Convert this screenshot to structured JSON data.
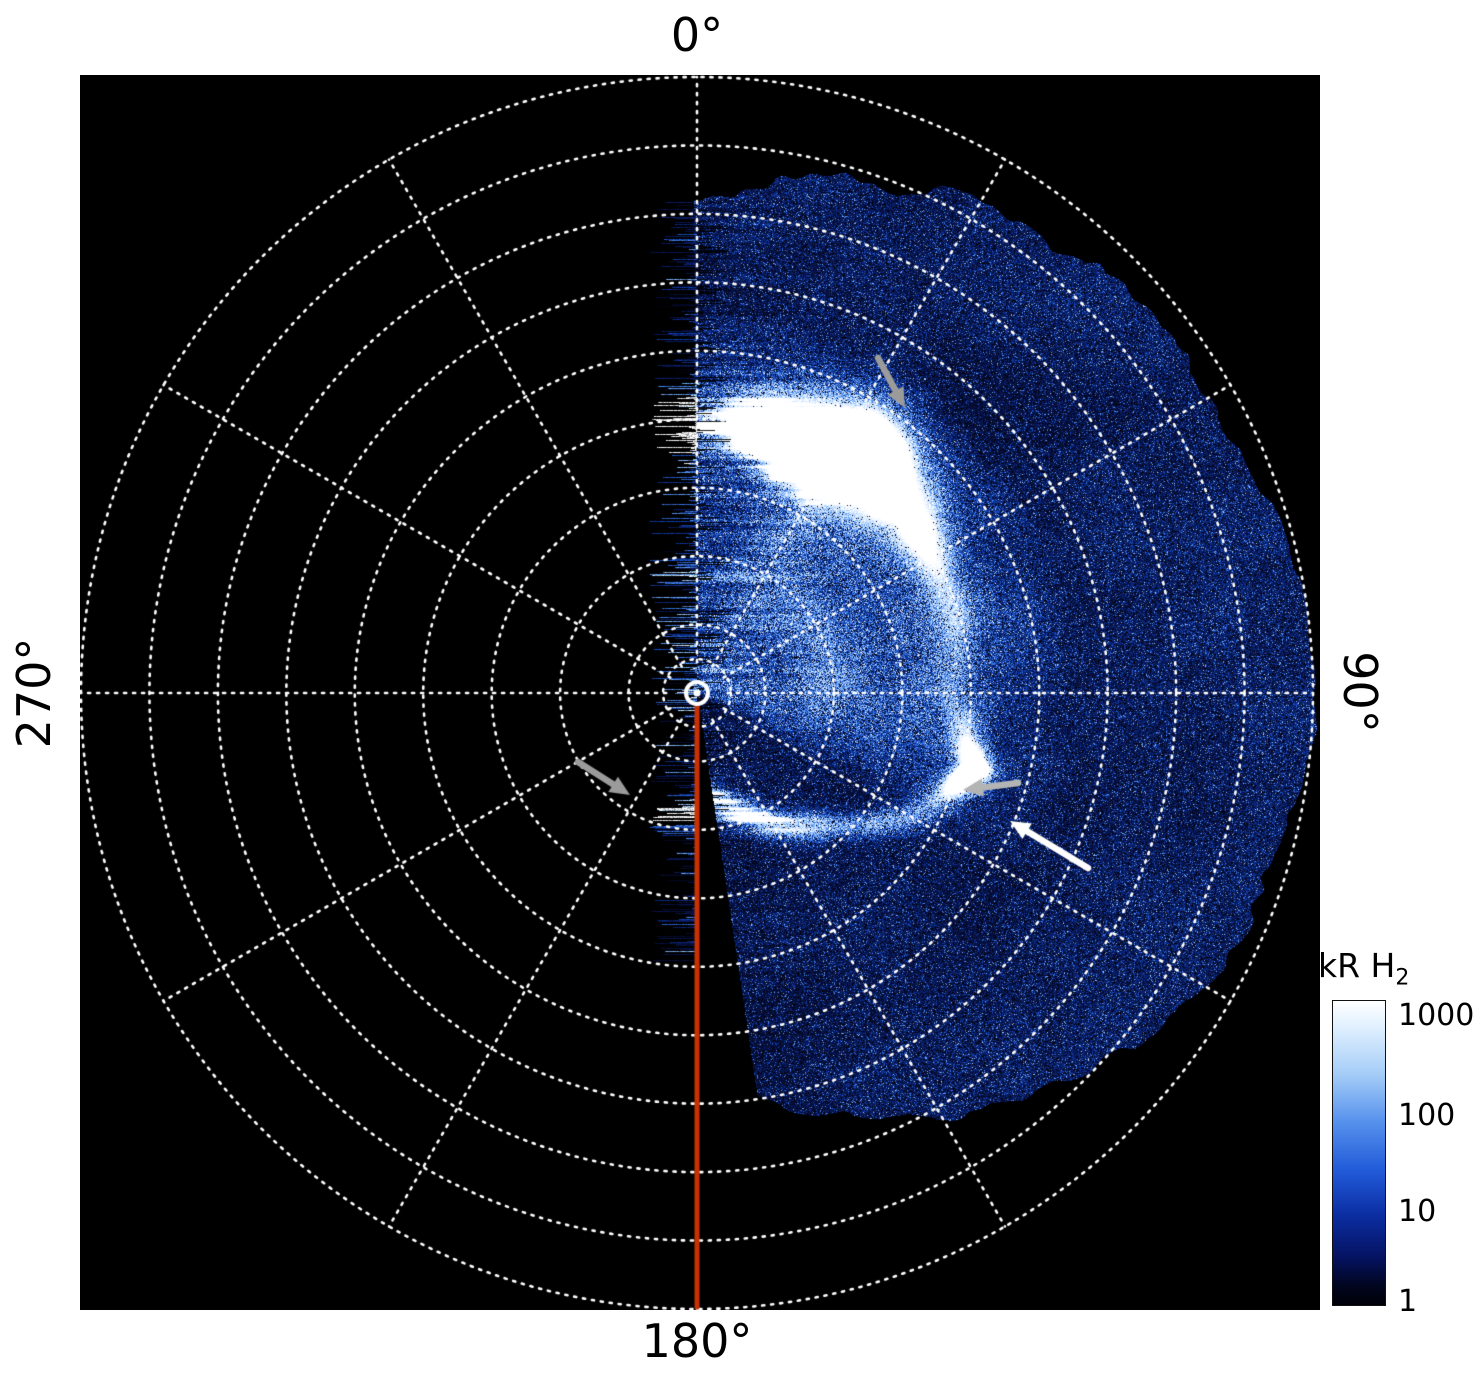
{
  "labels": {
    "top": "0°",
    "right": "90°",
    "bottom": "180°",
    "left": "270°"
  },
  "colorbar": {
    "title": "kR H",
    "title_sub": "2",
    "ticks": [
      "1000",
      "100",
      "10",
      "1"
    ]
  },
  "chart_data": {
    "type": "heatmap",
    "projection": "polar-azimuthal",
    "units": "kR H2",
    "angular_tick_labels_deg": [
      0,
      90,
      180,
      270
    ],
    "colorbar": {
      "label": "kR H2",
      "scale": "log",
      "ticks": [
        1000,
        100,
        10,
        1
      ]
    },
    "grid": {
      "style": "dotted",
      "color": "#ffffff",
      "num_circles": 9,
      "inner_circle_r": 0.055,
      "spoke_step_deg": 30
    },
    "coverage_sector_deg": [
      0,
      171
    ],
    "outer_edge": [
      [
        0,
        0.8
      ],
      [
        30,
        0.92
      ],
      [
        60,
        0.97
      ],
      [
        90,
        1.0
      ],
      [
        120,
        0.95
      ],
      [
        150,
        0.8
      ],
      [
        171,
        0.66
      ]
    ],
    "main_oval_r_by_theta": [
      [
        0,
        0.44
      ],
      [
        20,
        0.44
      ],
      [
        40,
        0.46
      ],
      [
        60,
        0.44
      ],
      [
        75,
        0.43
      ],
      [
        90,
        0.41
      ],
      [
        105,
        0.47
      ],
      [
        120,
        0.4
      ],
      [
        135,
        0.3
      ],
      [
        150,
        0.24
      ],
      [
        165,
        0.19
      ],
      [
        180,
        0.16
      ]
    ],
    "features": {
      "bright_arc_blob": {
        "theta_deg": [
          8,
          58
        ],
        "r": 0.45,
        "intensity": "saturated-white"
      },
      "bright_spot": {
        "theta_deg": 106,
        "r": 0.47
      },
      "lower_arc": {
        "theta_deg": [
          130,
          178
        ],
        "intensity": "bright"
      },
      "polar_fill": {
        "theta_deg": [
          0,
          115
        ],
        "r_max": 0.6
      }
    },
    "meridian_line": {
      "theta_deg": 180,
      "color": "#c83200"
    },
    "pole_marker": {
      "style": "double-circle",
      "color": "#ffffff"
    },
    "arrows": [
      {
        "color": "#9b9b9b",
        "tail": [
          798,
          283
        ],
        "tip": [
          825,
          333
        ]
      },
      {
        "color": "#9b9b9b",
        "tail": [
          498,
          687
        ],
        "tip": [
          550,
          720
        ]
      },
      {
        "color": "#b4b4b4",
        "tail": [
          938,
          708
        ],
        "tip": [
          883,
          715
        ]
      },
      {
        "color": "#ffffff",
        "tail": [
          1008,
          793
        ],
        "tip": [
          930,
          746
        ]
      }
    ],
    "colormap_stops": [
      [
        0,
        [
          2,
          2,
          8
        ]
      ],
      [
        0.18,
        [
          8,
          20,
          80
        ]
      ],
      [
        0.4,
        [
          18,
          70,
          190
        ]
      ],
      [
        0.62,
        [
          92,
          152,
          240
        ]
      ],
      [
        0.8,
        [
          182,
          216,
          255
        ]
      ],
      [
        1,
        [
          255,
          255,
          255
        ]
      ]
    ]
  }
}
